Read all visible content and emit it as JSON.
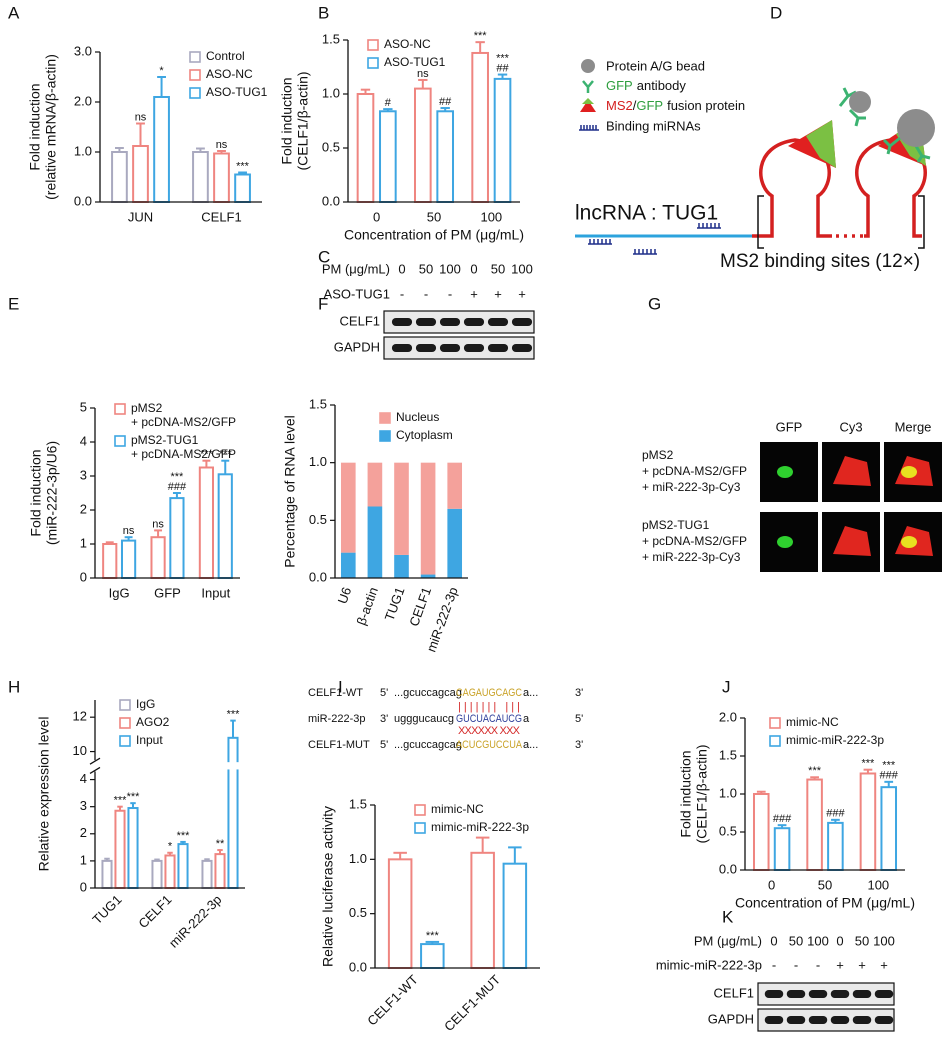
{
  "chart_data": [
    {
      "panel": "A",
      "type": "bar",
      "categories": [
        "JUN",
        "CELF1"
      ],
      "ylabel": [
        "Fold induction",
        "(relative mRNA/β-actin)"
      ],
      "ylim": [
        0,
        3
      ],
      "yticks": [
        {
          "value": 0,
          "label": "0.0"
        },
        {
          "value": 1,
          "label": "1.0"
        },
        {
          "value": 2,
          "label": "2.0"
        },
        {
          "value": 3,
          "label": "3.0"
        }
      ],
      "legend": "upper right",
      "series": [
        {
          "name": "Control",
          "color": "#a9a9bf",
          "values": [
            1.0,
            1.0
          ],
          "errors": [
            0.08,
            0.07
          ]
        },
        {
          "name": "ASO-NC",
          "color": "#ef8580",
          "values": [
            1.12,
            0.97
          ],
          "errors": [
            0.45,
            0.05
          ],
          "annotations": [
            "ns",
            "ns"
          ]
        },
        {
          "name": "ASO-TUG1",
          "color": "#3ea6e2",
          "values": [
            2.1,
            0.55
          ],
          "errors": [
            0.4,
            0.04
          ],
          "annotations": [
            "*",
            "***"
          ]
        }
      ]
    },
    {
      "panel": "B",
      "type": "bar",
      "categories": [
        "0",
        "50",
        "100"
      ],
      "xlabel": "Concentration of PM (μg/mL)",
      "ylabel": [
        "Fold induction",
        "(CELF1/β-actin)"
      ],
      "ylim": [
        0,
        1.5
      ],
      "yticks": [
        {
          "value": 0,
          "label": "0.0"
        },
        {
          "value": 0.5,
          "label": "0.5"
        },
        {
          "value": 1,
          "label": "1.0"
        },
        {
          "value": 1.5,
          "label": "1.5"
        }
      ],
      "legend": "upper left",
      "series": [
        {
          "name": "ASO-NC",
          "color": "#ef8580",
          "values": [
            1.0,
            1.05,
            1.38
          ],
          "errors": [
            0.04,
            0.08,
            0.1
          ],
          "annotations": [
            null,
            "ns",
            "***"
          ]
        },
        {
          "name": "ASO-TUG1",
          "color": "#3ea6e2",
          "values": [
            0.84,
            0.84,
            1.14
          ],
          "errors": [
            0.02,
            0.03,
            0.04
          ],
          "annotations": [
            "#",
            "##",
            [
              "***",
              "##"
            ]
          ]
        }
      ]
    },
    {
      "panel": "E",
      "type": "bar",
      "categories": [
        "IgG",
        "GFP",
        "Input"
      ],
      "ylabel": [
        "Fold induction",
        "(miR-222-3p/U6)"
      ],
      "ylim": [
        0,
        5
      ],
      "yticks": [
        0,
        1,
        2,
        3,
        4,
        5
      ],
      "legend": "upper left",
      "series": [
        {
          "name": "pMS2\n+ pcDNA-MS2/GFP",
          "color": "#ef8580",
          "values": [
            1.0,
            1.2,
            3.25
          ],
          "errors": [
            0.05,
            0.2,
            0.2
          ],
          "annotations": [
            null,
            "ns",
            "***"
          ]
        },
        {
          "name": "pMS2-TUG1\n+ pcDNA-MS2/GFP",
          "color": "#3ea6e2",
          "values": [
            1.1,
            2.35,
            3.05
          ],
          "errors": [
            0.1,
            0.15,
            0.4
          ],
          "annotations": [
            "ns",
            [
              "***",
              "###"
            ],
            "***"
          ]
        }
      ]
    },
    {
      "panel": "F",
      "type": "bar",
      "stacked": true,
      "categories": [
        "U6",
        "β-actin",
        "TUG1",
        "CELF1",
        "miR-222-3p"
      ],
      "xtick_rotation": -70,
      "ylabel": "Percentage of RNA level",
      "ylim": [
        0,
        1.5
      ],
      "yticks": [
        {
          "value": 0,
          "label": "0.0"
        },
        {
          "value": 0.5,
          "label": "0.5"
        },
        {
          "value": 1,
          "label": "1.0"
        },
        {
          "value": 1.5,
          "label": "1.5"
        }
      ],
      "legend": "upper right",
      "series": [
        {
          "name": "Nucleus",
          "color": "#f4a19b",
          "values": [
            0.78,
            0.38,
            0.8,
            0.97,
            0.4
          ]
        },
        {
          "name": "Cytoplasm",
          "color": "#3ea6e2",
          "values": [
            0.22,
            0.62,
            0.2,
            0.03,
            0.6
          ]
        }
      ]
    },
    {
      "panel": "H",
      "type": "bar",
      "categories": [
        "TUG1",
        "CELF1",
        "miR-222-3p"
      ],
      "xtick_rotation": -45,
      "ylabel": "Relative expression level",
      "ylim": [
        0,
        13
      ],
      "axis_break": [
        4.3,
        9.5
      ],
      "yticks": [
        0,
        1,
        2,
        3,
        4,
        10,
        12
      ],
      "legend": "upper left",
      "series": [
        {
          "name": "IgG",
          "color": "#a9a9bf",
          "values": [
            1.0,
            1.0,
            1.0
          ],
          "errors": [
            0.08,
            0.05,
            0.06
          ]
        },
        {
          "name": "AGO2",
          "color": "#ef8580",
          "values": [
            2.85,
            1.2,
            1.25
          ],
          "errors": [
            0.15,
            0.1,
            0.15
          ],
          "annotations": [
            "***",
            "*",
            "**"
          ]
        },
        {
          "name": "Input",
          "color": "#3ea6e2",
          "values": [
            2.95,
            1.62,
            10.8
          ],
          "errors": [
            0.18,
            0.08,
            1.0
          ],
          "annotations": [
            "***",
            "***",
            "***"
          ]
        }
      ]
    },
    {
      "panel": "I",
      "type": "bar",
      "categories": [
        "CELF1-WT",
        "CELF1-MUT"
      ],
      "xtick_rotation": -45,
      "ylabel": "Relative luciferase activity",
      "ylim": [
        0,
        1.5
      ],
      "yticks": [
        {
          "value": 0,
          "label": "0.0"
        },
        {
          "value": 0.5,
          "label": "0.5"
        },
        {
          "value": 1,
          "label": "1.0"
        },
        {
          "value": 1.5,
          "label": "1.5"
        }
      ],
      "legend": "upper left",
      "series": [
        {
          "name": "mimic-NC",
          "color": "#ef8580",
          "values": [
            1.0,
            1.06
          ],
          "errors": [
            0.06,
            0.14
          ]
        },
        {
          "name": "mimic-miR-222-3p",
          "color": "#3ea6e2",
          "values": [
            0.22,
            0.96
          ],
          "errors": [
            0.02,
            0.15
          ],
          "annotations": [
            "***",
            null
          ]
        }
      ]
    },
    {
      "panel": "J",
      "type": "bar",
      "categories": [
        "0",
        "50",
        "100"
      ],
      "xlabel": "Concentration of PM (μg/mL)",
      "ylabel": [
        "Fold induction",
        "(CELF1/β-actin)"
      ],
      "ylim": [
        0,
        2
      ],
      "yticks": [
        {
          "value": 0,
          "label": "0.0"
        },
        {
          "value": 0.5,
          "label": "0.5"
        },
        {
          "value": 1,
          "label": "1.0"
        },
        {
          "value": 1.5,
          "label": "1.5"
        },
        {
          "value": 2,
          "label": "2.0"
        }
      ],
      "legend": "upper left",
      "series": [
        {
          "name": "mimic-NC",
          "color": "#ef8580",
          "values": [
            1.0,
            1.19,
            1.27
          ],
          "errors": [
            0.03,
            0.03,
            0.05
          ],
          "annotations": [
            null,
            "***",
            "***"
          ]
        },
        {
          "name": "mimic-miR-222-3p",
          "color": "#3ea6e2",
          "values": [
            0.55,
            0.62,
            1.09
          ],
          "errors": [
            0.04,
            0.04,
            0.07
          ],
          "annotations": [
            "###",
            "###",
            [
              "***",
              "###"
            ]
          ]
        }
      ]
    }
  ],
  "blots": [
    {
      "panel": "C",
      "conditions": [
        {
          "label": "PM (μg/mL)",
          "values": [
            "0",
            "50",
            "100",
            "0",
            "50",
            "100"
          ]
        },
        {
          "label": "ASO-TUG1",
          "values": [
            "-",
            "-",
            "-",
            "+",
            "+",
            "+"
          ]
        }
      ],
      "bands": [
        "CELF1",
        "GAPDH"
      ]
    },
    {
      "panel": "K",
      "conditions": [
        {
          "label": "PM (μg/mL)",
          "values": [
            "0",
            "50",
            "100",
            "0",
            "50",
            "100"
          ]
        },
        {
          "label": "mimic-miR-222-3p",
          "values": [
            "-",
            "-",
            "-",
            "+",
            "+",
            "+"
          ]
        }
      ],
      "bands": [
        "CELF1",
        "GAPDH"
      ]
    }
  ],
  "diagram": {
    "panel": "D",
    "legend": [
      "Protein A/G bead",
      [
        "GFP",
        "antibody"
      ],
      [
        "MS2",
        "/",
        "GFP",
        "fusion protein"
      ],
      "Binding miRNAs"
    ],
    "rna_label": "lncRNA : TUG1",
    "sites_label": "MS2 binding sites (12×)"
  },
  "microscopy": {
    "panel": "G",
    "columns": [
      "GFP",
      "Cy3",
      "Merge"
    ],
    "rows": [
      [
        "pMS2",
        "+ pcDNA-MS2/GFP",
        "+ miR-222-3p-Cy3"
      ],
      [
        "pMS2-TUG1",
        "+ pcDNA-MS2/GFP",
        "+ miR-222-3p-Cy3"
      ]
    ]
  },
  "sequences": {
    "rows": [
      {
        "name": "CELF1-WT",
        "left_end": "5'",
        "flank": "...gcuccagcag",
        "site": "CAGAUGCAGC",
        "tail": "a...",
        "right_end": "3'"
      },
      {
        "name": "miR-222-3p",
        "left_end": "3'",
        "flank": "ugggucaucg",
        "site": "GUCUACAUCG",
        "tail": "a",
        "right_end": "5'"
      },
      {
        "name": "CELF1-MUT",
        "left_end": "5'",
        "flank": "...gcuccagcag",
        "site": "ACUCGUCCUA",
        "tail": "a...",
        "right_end": "3'"
      }
    ],
    "pairing": "|||||||  |||",
    "mismatch": "XXXXXX  XXX"
  }
}
